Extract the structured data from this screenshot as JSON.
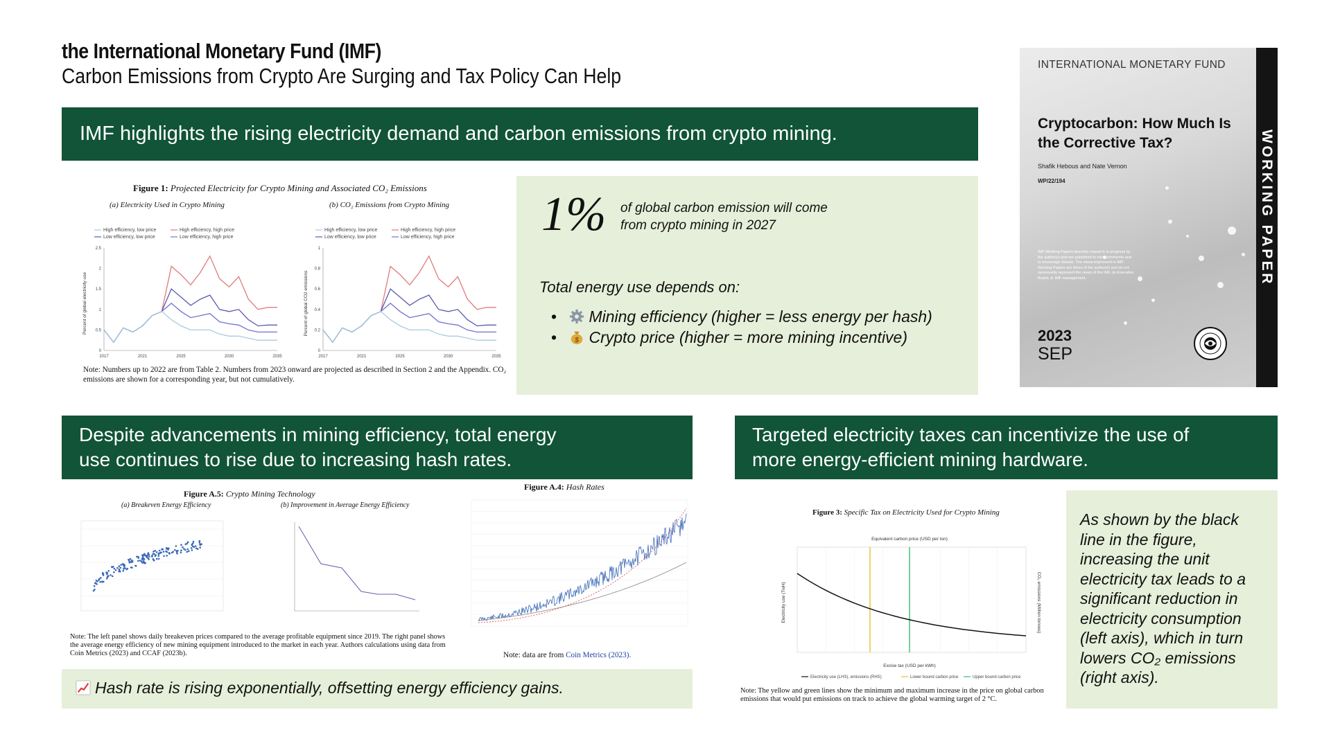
{
  "header": {
    "org": "the International Monetary Fund (IMF)",
    "subtitle": "Carbon Emissions from Crypto Are Surging and Tax Policy Can Help"
  },
  "banners": {
    "top": "IMF highlights the rising electricity demand and carbon emissions from crypto mining.",
    "left_line1": "Despite advancements in mining efficiency, total energy",
    "left_line2": "use continues to rise due to increasing hash rates.",
    "right_line1": "Targeted electricity taxes can incentivize the use of",
    "right_line2": "more energy-efficient mining hardware."
  },
  "stat": {
    "big": "1%",
    "line1": "of global carbon emission will come",
    "line2": "from crypto mining in 2027",
    "depends_title": "Total energy use depends on:",
    "items": [
      {
        "icon": "gear-icon",
        "text": "Mining efficiency (higher = less energy per hash)"
      },
      {
        "icon": "money-bag-icon",
        "text": "Crypto price (higher = more mining incentive)"
      }
    ]
  },
  "callouts": {
    "hash": "Hash rate is rising exponentially, offsetting energy efficiency gains.",
    "hash_icon": "chart-increasing-icon",
    "black_line_text": "As shown by the black line in the figure, increasing the unit electricity tax leads to a significant reduction in electricity consumption (left axis), which in turn lowers CO₂ emissions (right axis)."
  },
  "cover": {
    "org": "INTERNATIONAL MONETARY FUND",
    "title": "Cryptocarbon: How Much Is the Corrective Tax?",
    "authors": "Shafik Hebous and Nate Vernon",
    "wp": "WP/22/194",
    "note": "IMF Working Papers describe research in progress by the author(s) and are published to elicit comments and to encourage debate. The views expressed in IMF Working Papers are those of the author(s) and do not necessarily represent the views of the IMF, its Executive Board, or IMF management.",
    "year": "2023",
    "month": "SEP",
    "strip": "WORKING PAPER"
  },
  "fig1": {
    "title_bold": "Figure 1:",
    "title_rest": "Projected Electricity for Crypto Mining and Associated CO₂ Emissions",
    "panel_a": "(a) Electricity Used in Crypto Mining",
    "panel_b": "(b) CO₂ Emissions from Crypto Mining",
    "legend": [
      "High efficiency, low price",
      "Low efficiency, low price",
      "High efficiency, high price",
      "Low efficiency, high price"
    ],
    "ylabel_a": "Percent of global electricity use",
    "ylabel_b": "Percent of global CO2 emissions",
    "note": "Note: Numbers up to 2022 are from Table 2. Numbers from 2023 onward are projected as described in Section 2 and the Appendix. CO₂ emissions are shown for a corresponding year, but not cumulatively."
  },
  "fig_a5": {
    "title_bold": "Figure A.5:",
    "title_rest": "Crypto Mining Technology",
    "panel_a": "(a) Breakeven Energy Efficiency",
    "panel_b": "(b) Improvement in Average Energy Efficiency",
    "note": "Note: The left panel shows daily breakeven prices compared to the average profitable equipment since 2019. The right panel shows the average energy efficiency of new mining equipment introduced to the market in each year. Authors calculations using data from Coin Metrics (2023) and CCAF (2023b)."
  },
  "fig_a4": {
    "title_bold": "Figure A.4:",
    "title_rest": "Hash Rates",
    "note_pre": "Note: data are from ",
    "note_link": "Coin Metrics (2023)."
  },
  "fig3": {
    "title_bold": "Figure 3:",
    "title_rest": "Specific Tax on Electricity Used for Crypto Mining",
    "top_axis": "Equivalent carbon price (USD per ton)",
    "x_axis": "Excise tax (USD per kWh)",
    "y_left": "Electricity use (TwH)",
    "y_right": "CO₂ emissions (Million tonnes)",
    "legend": [
      "Electricity use (LHS), emissions (RHS)",
      "Lower bound carbon price",
      "Upper bound carbon price"
    ],
    "note": "Note: The yellow and green lines show the minimum and maximum increase in the price on global carbon emissions that would put emissions on track to achieve the global warming target of 2 °C."
  },
  "colors": {
    "banner": "#115438",
    "box": "#e6efd9",
    "series_red": "#e07a7a",
    "series_blue": "#5a5ab0",
    "series_lightblue": "#a8cbe0",
    "hash_blue": "#3a68b8",
    "lower_bound": "#e8c030",
    "upper_bound": "#3cb878"
  }
}
